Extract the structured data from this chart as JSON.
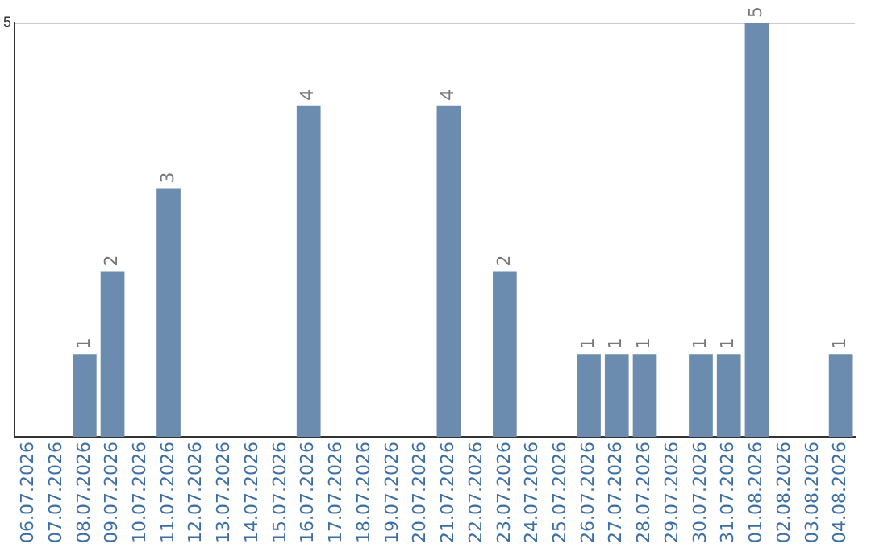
{
  "chart_data": {
    "type": "bar",
    "categories": [
      "06.07.2026",
      "07.07.2026",
      "08.07.2026",
      "09.07.2026",
      "10.07.2026",
      "11.07.2026",
      "12.07.2026",
      "13.07.2026",
      "14.07.2026",
      "15.07.2026",
      "16.07.2026",
      "17.07.2026",
      "18.07.2026",
      "19.07.2026",
      "20.07.2026",
      "21.07.2026",
      "22.07.2026",
      "23.07.2026",
      "24.07.2026",
      "25.07.2026",
      "26.07.2026",
      "27.07.2026",
      "28.07.2026",
      "29.07.2026",
      "30.07.2026",
      "31.07.2026",
      "01.08.2026",
      "02.08.2026",
      "03.08.2026",
      "04.08.2026"
    ],
    "values": [
      0,
      0,
      1,
      2,
      0,
      3,
      0,
      0,
      0,
      0,
      4,
      0,
      0,
      0,
      0,
      4,
      0,
      2,
      0,
      0,
      1,
      1,
      1,
      0,
      1,
      1,
      5,
      0,
      0,
      1
    ],
    "value_labels": [
      null,
      null,
      "1",
      "2",
      null,
      "3",
      null,
      null,
      null,
      null,
      "4",
      null,
      null,
      null,
      null,
      "4",
      null,
      "2",
      null,
      null,
      "1",
      "1",
      "1",
      null,
      "1",
      "1",
      "5",
      null,
      null,
      "1"
    ],
    "color": "#6b8caf",
    "ylim": [
      0,
      5
    ],
    "yticks": [
      5
    ],
    "legend": false
  }
}
